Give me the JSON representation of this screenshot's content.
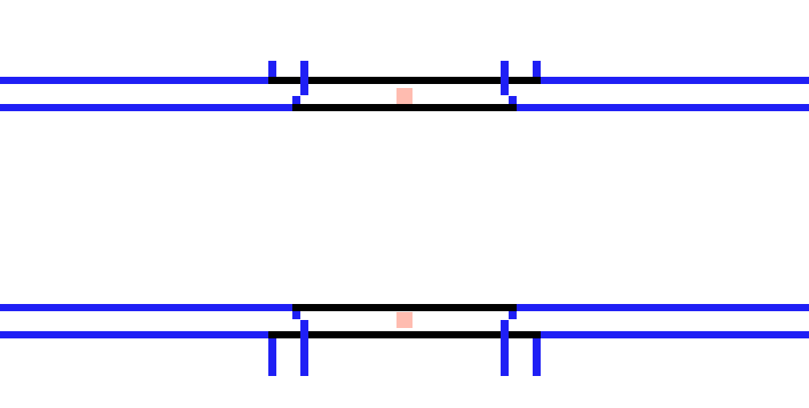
{
  "colors": {
    "background": "#ffffff",
    "track_rail": "#1f1ff5",
    "platform_edge": "#000000",
    "marker": "#ffbcb0"
  },
  "icons": {
    "upper_marker": "marker-square-icon",
    "lower_marker": "marker-square-icon"
  },
  "scene": {
    "upper_track": {
      "rails": 2,
      "platform_edges": 2,
      "markers": 1
    },
    "lower_track": {
      "rails": 2,
      "platform_edges": 2,
      "markers": 1
    }
  }
}
